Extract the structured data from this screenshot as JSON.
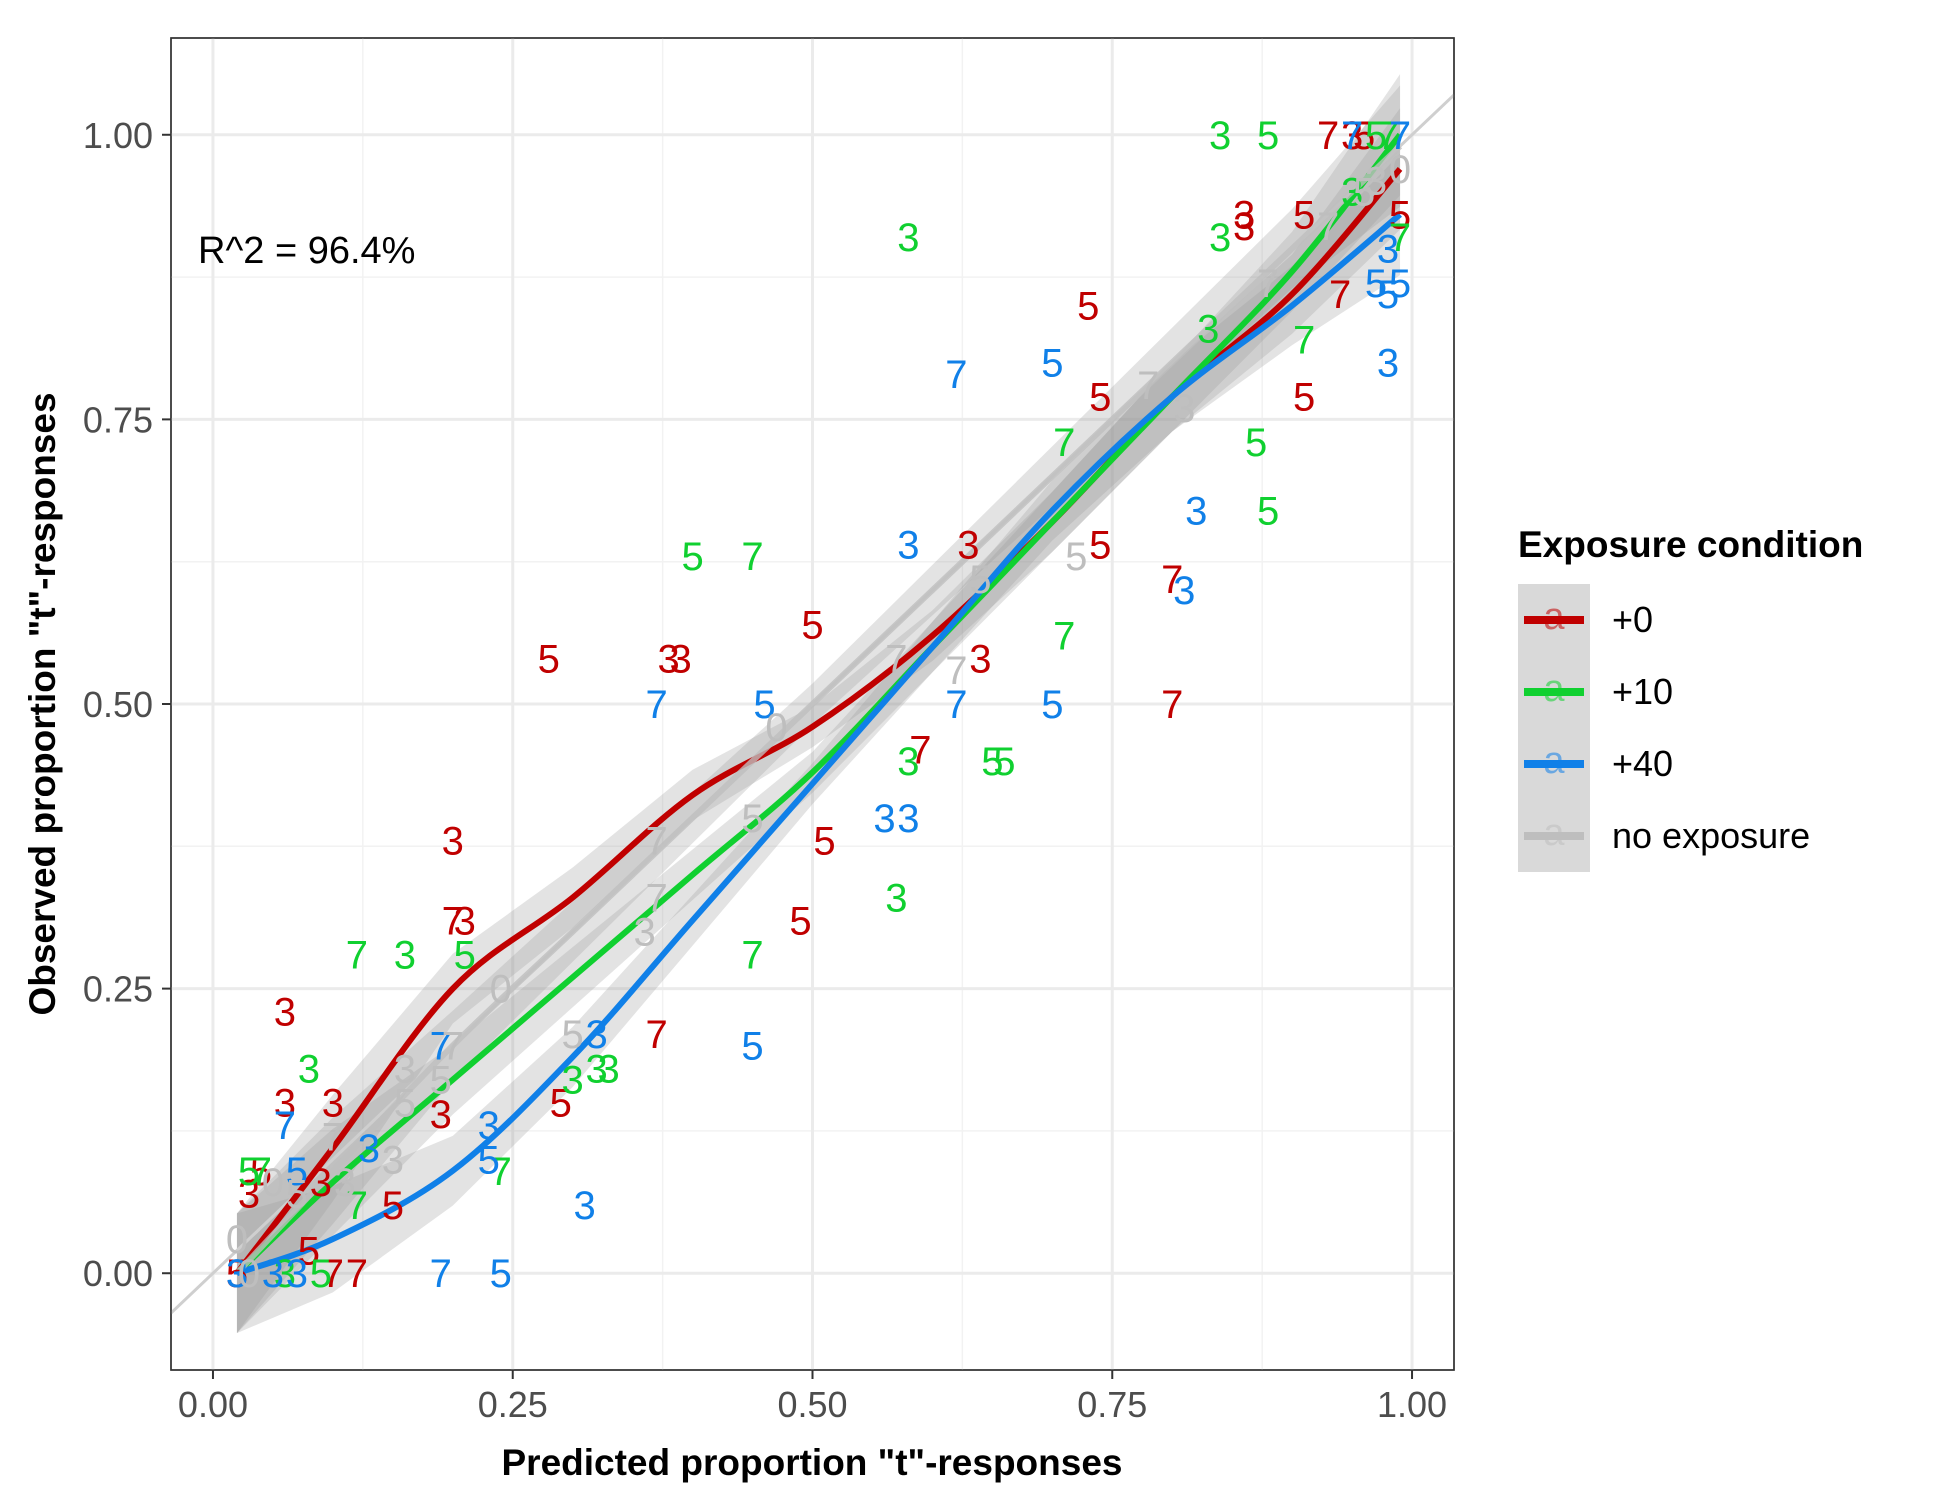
{
  "chart_data": {
    "type": "scatter",
    "xlabel": "Predicted proportion \"t\"-responses",
    "ylabel": "Observed proportion \"t\"-responses",
    "xlim": [
      -0.035,
      1.035
    ],
    "ylim": [
      -0.085,
      1.085
    ],
    "xticks": [
      "0.00",
      "0.25",
      "0.50",
      "0.75",
      "1.00"
    ],
    "yticks": [
      "0.00",
      "0.25",
      "0.50",
      "0.75",
      "1.00"
    ],
    "grid": true,
    "annotation": "R^2 = 96.4%",
    "reference_line": "y = x",
    "legend": {
      "title": "Exposure condition",
      "placement": "right",
      "key_glyph": "a",
      "entries": [
        {
          "label": "+0",
          "color": "#C00000"
        },
        {
          "label": "+10",
          "color": "#10D030"
        },
        {
          "label": "+40",
          "color": "#1080E8"
        },
        {
          "label": "no exposure",
          "color": "#BEBEBE"
        }
      ]
    },
    "series": [
      {
        "color": "#C00000",
        "points": [
          [
            0.03,
            0.07,
            "3"
          ],
          [
            0.04,
            0.09,
            "5"
          ],
          [
            0.06,
            0.23,
            "3"
          ],
          [
            0.06,
            0.15,
            "3"
          ],
          [
            0.1,
            0.15,
            "3"
          ],
          [
            0.08,
            0.02,
            "5"
          ],
          [
            0.09,
            0.08,
            "3"
          ],
          [
            0.15,
            0.06,
            "5"
          ],
          [
            0.2,
            0.38,
            "3"
          ],
          [
            0.2,
            0.31,
            "7"
          ],
          [
            0.21,
            0.31,
            "3"
          ],
          [
            0.19,
            0.14,
            "3"
          ],
          [
            0.28,
            0.54,
            "5"
          ],
          [
            0.38,
            0.54,
            "3"
          ],
          [
            0.39,
            0.54,
            "3"
          ],
          [
            0.29,
            0.15,
            "5"
          ],
          [
            0.37,
            0.21,
            "7"
          ],
          [
            0.5,
            0.57,
            "5"
          ],
          [
            0.51,
            0.38,
            "5"
          ],
          [
            0.49,
            0.31,
            "5"
          ],
          [
            0.59,
            0.46,
            "7"
          ],
          [
            0.63,
            0.64,
            "3"
          ],
          [
            0.64,
            0.54,
            "3"
          ],
          [
            0.73,
            0.85,
            "5"
          ],
          [
            0.74,
            0.77,
            "5"
          ],
          [
            0.74,
            0.64,
            "5"
          ],
          [
            0.8,
            0.5,
            "7"
          ],
          [
            0.8,
            0.61,
            "7"
          ],
          [
            0.86,
            0.93,
            "3"
          ],
          [
            0.86,
            0.92,
            "3"
          ],
          [
            0.91,
            0.93,
            "5"
          ],
          [
            0.91,
            0.77,
            "5"
          ],
          [
            0.94,
            0.86,
            "7"
          ],
          [
            0.93,
            1.0,
            "7"
          ],
          [
            0.95,
            1.0,
            "3"
          ],
          [
            0.96,
            1.0,
            "5"
          ],
          [
            0.99,
            0.93,
            "5"
          ],
          [
            0.02,
            0.0,
            "5"
          ],
          [
            0.1,
            0.0,
            "7"
          ],
          [
            0.12,
            0.0,
            "7"
          ]
        ],
        "fit": [
          [
            0.02,
            0.0
          ],
          [
            0.1,
            0.11
          ],
          [
            0.2,
            0.25
          ],
          [
            0.3,
            0.33
          ],
          [
            0.4,
            0.42
          ],
          [
            0.5,
            0.48
          ],
          [
            0.6,
            0.56
          ],
          [
            0.7,
            0.66
          ],
          [
            0.8,
            0.77
          ],
          [
            0.9,
            0.86
          ],
          [
            0.99,
            0.97
          ]
        ]
      },
      {
        "color": "#10D030",
        "points": [
          [
            0.03,
            0.09,
            "5"
          ],
          [
            0.04,
            0.09,
            "7"
          ],
          [
            0.08,
            0.18,
            "3"
          ],
          [
            0.12,
            0.28,
            "7"
          ],
          [
            0.16,
            0.28,
            "3"
          ],
          [
            0.21,
            0.28,
            "5"
          ],
          [
            0.12,
            0.06,
            "7"
          ],
          [
            0.24,
            0.09,
            "7"
          ],
          [
            0.3,
            0.17,
            "3"
          ],
          [
            0.32,
            0.18,
            "3"
          ],
          [
            0.33,
            0.18,
            "3"
          ],
          [
            0.4,
            0.63,
            "5"
          ],
          [
            0.45,
            0.63,
            "7"
          ],
          [
            0.45,
            0.28,
            "7"
          ],
          [
            0.58,
            0.45,
            "3"
          ],
          [
            0.57,
            0.33,
            "3"
          ],
          [
            0.65,
            0.45,
            "5"
          ],
          [
            0.66,
            0.45,
            "5"
          ],
          [
            0.71,
            0.73,
            "7"
          ],
          [
            0.71,
            0.56,
            "7"
          ],
          [
            0.58,
            0.91,
            "3"
          ],
          [
            0.84,
            1.0,
            "3"
          ],
          [
            0.88,
            1.0,
            "5"
          ],
          [
            0.84,
            0.91,
            "3"
          ],
          [
            0.83,
            0.83,
            "3"
          ],
          [
            0.87,
            0.73,
            "5"
          ],
          [
            0.88,
            0.67,
            "5"
          ],
          [
            0.91,
            0.82,
            "7"
          ],
          [
            0.95,
            0.95,
            "3"
          ],
          [
            0.97,
            1.0,
            "5"
          ],
          [
            0.98,
            1.0,
            "7"
          ],
          [
            0.99,
            0.91,
            "7"
          ],
          [
            0.06,
            0.0,
            "3"
          ],
          [
            0.09,
            0.0,
            "5"
          ]
        ],
        "fit": [
          [
            0.02,
            0.0
          ],
          [
            0.1,
            0.08
          ],
          [
            0.2,
            0.17
          ],
          [
            0.3,
            0.26
          ],
          [
            0.4,
            0.35
          ],
          [
            0.5,
            0.44
          ],
          [
            0.6,
            0.55
          ],
          [
            0.7,
            0.66
          ],
          [
            0.8,
            0.77
          ],
          [
            0.9,
            0.88
          ],
          [
            0.99,
            1.0
          ]
        ]
      },
      {
        "color": "#1080E8",
        "points": [
          [
            0.06,
            0.13,
            "7"
          ],
          [
            0.07,
            0.09,
            "5"
          ],
          [
            0.13,
            0.11,
            "3"
          ],
          [
            0.19,
            0.2,
            "7"
          ],
          [
            0.23,
            0.13,
            "3"
          ],
          [
            0.23,
            0.1,
            "5"
          ],
          [
            0.31,
            0.06,
            "3"
          ],
          [
            0.32,
            0.21,
            "3"
          ],
          [
            0.37,
            0.5,
            "7"
          ],
          [
            0.46,
            0.5,
            "5"
          ],
          [
            0.45,
            0.2,
            "5"
          ],
          [
            0.56,
            0.4,
            "3"
          ],
          [
            0.58,
            0.4,
            "3"
          ],
          [
            0.58,
            0.64,
            "3"
          ],
          [
            0.62,
            0.79,
            "7"
          ],
          [
            0.62,
            0.5,
            "7"
          ],
          [
            0.7,
            0.8,
            "5"
          ],
          [
            0.7,
            0.5,
            "5"
          ],
          [
            0.82,
            0.67,
            "3"
          ],
          [
            0.81,
            0.6,
            "3"
          ],
          [
            0.95,
            1.0,
            "7"
          ],
          [
            0.97,
            0.87,
            "5"
          ],
          [
            0.98,
            0.86,
            "5"
          ],
          [
            0.99,
            0.87,
            "5"
          ],
          [
            0.98,
            0.8,
            "3"
          ],
          [
            0.98,
            0.9,
            "3"
          ],
          [
            0.99,
            1.0,
            "7"
          ],
          [
            0.02,
            0.0,
            "3"
          ],
          [
            0.05,
            0.0,
            "3"
          ],
          [
            0.07,
            0.0,
            "3"
          ],
          [
            0.19,
            0.0,
            "7"
          ],
          [
            0.24,
            0.0,
            "5"
          ]
        ],
        "fit": [
          [
            0.02,
            0.0
          ],
          [
            0.1,
            0.03
          ],
          [
            0.2,
            0.09
          ],
          [
            0.3,
            0.19
          ],
          [
            0.4,
            0.31
          ],
          [
            0.5,
            0.43
          ],
          [
            0.6,
            0.55
          ],
          [
            0.7,
            0.67
          ],
          [
            0.8,
            0.77
          ],
          [
            0.9,
            0.85
          ],
          [
            0.99,
            0.93
          ]
        ]
      },
      {
        "color": "#BEBEBE",
        "points": [
          [
            0.02,
            0.03,
            "0"
          ],
          [
            0.05,
            0.08,
            "0"
          ],
          [
            0.07,
            0.07,
            "5"
          ],
          [
            0.11,
            0.08,
            "3"
          ],
          [
            0.1,
            0.12,
            "7"
          ],
          [
            0.15,
            0.1,
            "3"
          ],
          [
            0.16,
            0.15,
            "5"
          ],
          [
            0.16,
            0.18,
            "3"
          ],
          [
            0.2,
            0.2,
            "7"
          ],
          [
            0.19,
            0.17,
            "5"
          ],
          [
            0.24,
            0.25,
            "0"
          ],
          [
            0.3,
            0.21,
            "5"
          ],
          [
            0.36,
            0.3,
            "3"
          ],
          [
            0.37,
            0.38,
            "7"
          ],
          [
            0.37,
            0.33,
            "7"
          ],
          [
            0.45,
            0.4,
            "5"
          ],
          [
            0.47,
            0.48,
            "0"
          ],
          [
            0.57,
            0.54,
            "7"
          ],
          [
            0.62,
            0.53,
            "7"
          ],
          [
            0.64,
            0.61,
            "5"
          ],
          [
            0.72,
            0.63,
            "5"
          ],
          [
            0.78,
            0.78,
            "7"
          ],
          [
            0.81,
            0.76,
            "3"
          ],
          [
            0.88,
            0.87,
            "7"
          ],
          [
            0.93,
            0.92,
            "7"
          ],
          [
            0.96,
            0.95,
            "5"
          ],
          [
            0.97,
            0.96,
            "3"
          ],
          [
            0.99,
            0.97,
            "0"
          ],
          [
            0.03,
            0.0,
            "0"
          ]
        ],
        "fit": [
          [
            0.02,
            0.0
          ],
          [
            0.1,
            0.09
          ],
          [
            0.2,
            0.2
          ],
          [
            0.3,
            0.3
          ],
          [
            0.4,
            0.4
          ],
          [
            0.5,
            0.5
          ],
          [
            0.6,
            0.6
          ],
          [
            0.7,
            0.7
          ],
          [
            0.8,
            0.8
          ],
          [
            0.9,
            0.9
          ],
          [
            0.99,
            0.99
          ]
        ]
      }
    ]
  }
}
